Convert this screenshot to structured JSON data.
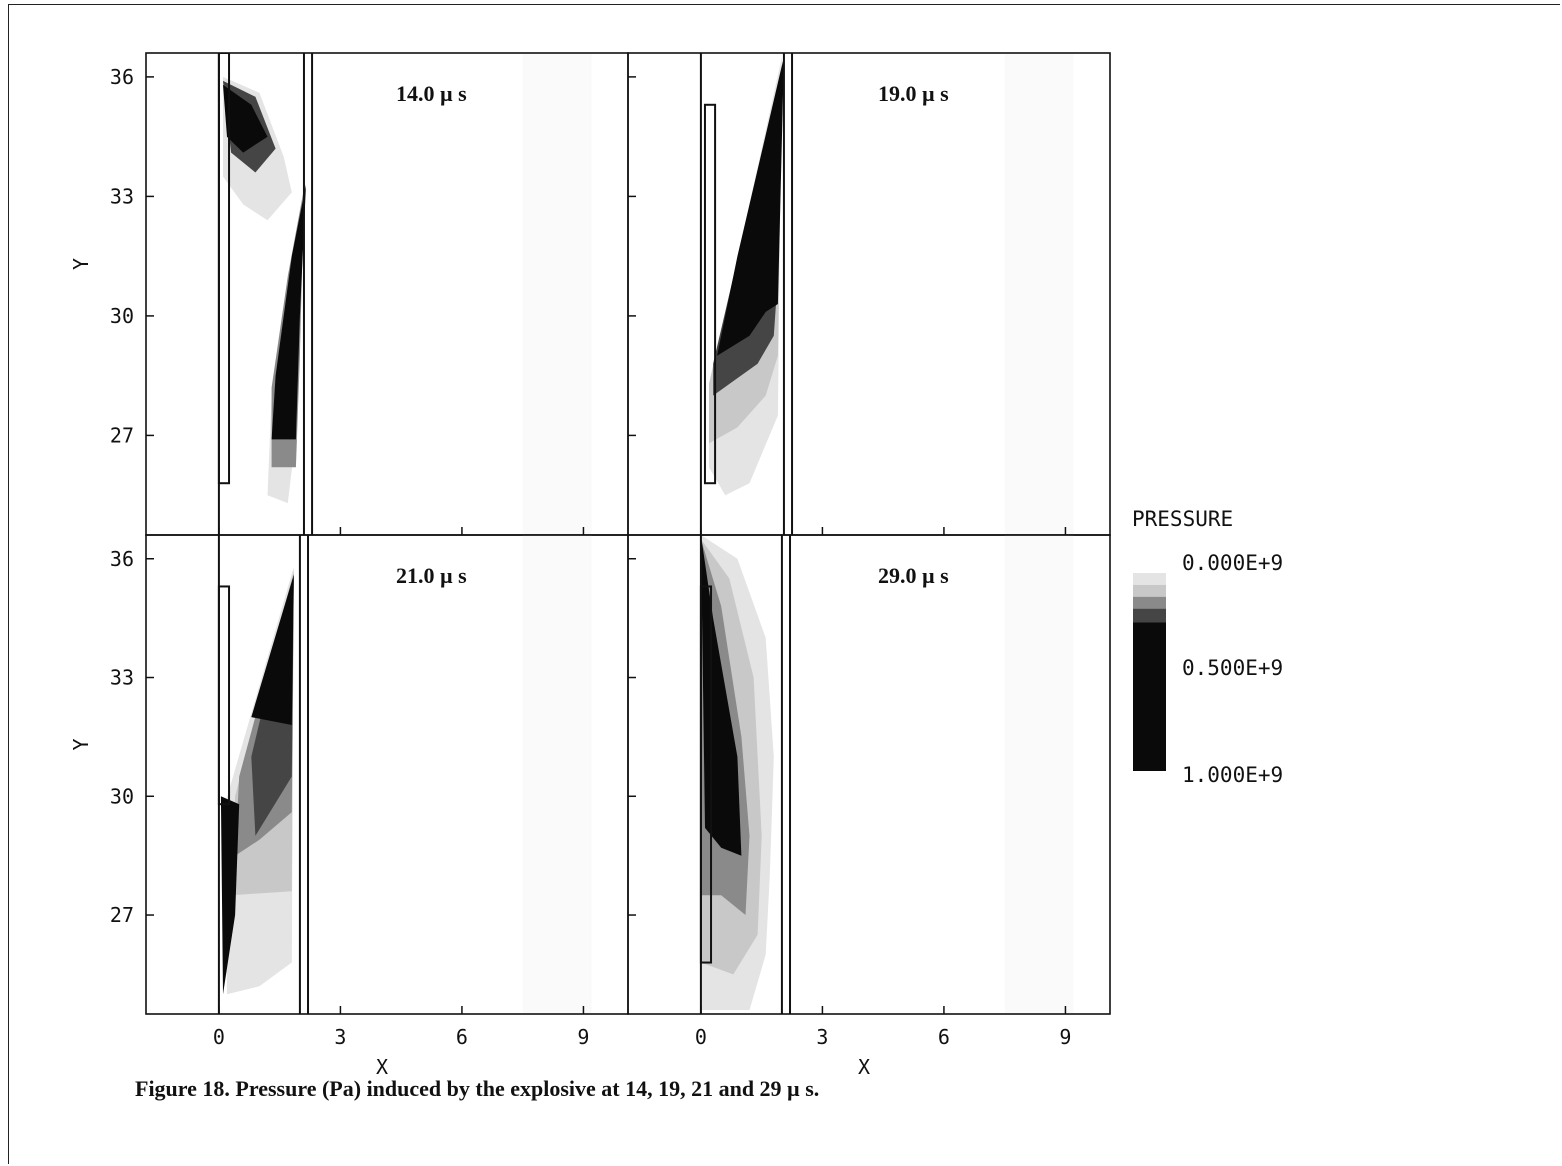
{
  "caption": "Figure 18.   Pressure (Pa) induced by the explosive at 14, 19, 21 and 29 µ s.",
  "legend": {
    "title": "PRESSURE",
    "labels": [
      "0.000E+9",
      "0.500E+9",
      "1.000E+9"
    ]
  },
  "chart_data": {
    "type": "heatmap",
    "panels": [
      {
        "time_label": "14.0 µ s",
        "time_us": 14.0
      },
      {
        "time_label": "19.0 µ s",
        "time_us": 19.0
      },
      {
        "time_label": "21.0 µ s",
        "time_us": 21.0
      },
      {
        "time_label": "29.0 µ s",
        "time_us": 29.0
      }
    ],
    "xlabel": "X",
    "ylabel": "Y",
    "xticks": [
      0,
      3,
      6,
      9
    ],
    "yticks": [
      36,
      33,
      30,
      27
    ],
    "xlim": [
      -1.8,
      10.1
    ],
    "ylim": [
      24.5,
      36.6
    ],
    "colorbar": {
      "min": 0.0,
      "max": 1.0,
      "unit": "E+9 Pa"
    },
    "colors": {
      "lightest": "#e4e4e4",
      "light": "#c8c8c8",
      "mid": "#8a8a8a",
      "dark": "#454545",
      "darkest": "#0a0a0a"
    }
  }
}
